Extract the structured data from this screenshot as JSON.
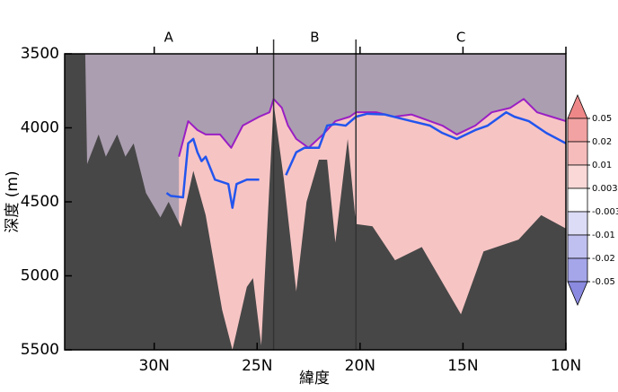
{
  "chart_data": {
    "type": "section",
    "xlabel": "緯度",
    "ylabel": "深度 (m)",
    "xlim": [
      34.35,
      10
    ],
    "ylim": [
      3500,
      5500
    ],
    "xticks": [
      {
        "value": 30,
        "label": "30N"
      },
      {
        "value": 25,
        "label": "25N"
      },
      {
        "value": 20,
        "label": "20N"
      },
      {
        "value": 15,
        "label": "15N"
      },
      {
        "value": 10,
        "label": "10N"
      }
    ],
    "yticks": [
      3500,
      4000,
      4500,
      5000,
      5500
    ],
    "sections": [
      {
        "label": "A",
        "x": 29.3
      },
      {
        "label": "B",
        "x": 22.2
      },
      {
        "label": "C",
        "x": 15.1
      }
    ],
    "dividers": [
      24.2,
      20.2
    ],
    "shading": {
      "below": "#f7c4c4",
      "above": "#9d98ad"
    },
    "bathymetry": {
      "color": "#474747",
      "x": [
        34.0,
        33.35,
        33.26,
        32.7,
        32.35,
        31.8,
        31.4,
        31.0,
        30.4,
        29.7,
        29.3,
        28.7,
        28.1,
        27.5,
        26.7,
        26.2,
        25.5,
        25.2,
        24.8,
        24.2,
        23.7,
        23.1,
        22.6,
        22.0,
        21.6,
        21.2,
        20.6,
        20.2,
        19.4,
        18.3,
        17.0,
        15.1,
        14.0,
        12.3,
        11.2,
        10.0
      ],
      "values": [
        3500,
        3500,
        4245,
        4045,
        4195,
        4045,
        4195,
        4105,
        4440,
        4605,
        4500,
        4670,
        4290,
        4590,
        5230,
        5500,
        5075,
        5015,
        5470,
        3835,
        4350,
        5105,
        4500,
        4215,
        4215,
        4775,
        4075,
        4650,
        4665,
        4895,
        4805,
        5260,
        4835,
        4755,
        4590,
        4680
      ]
    },
    "blue_line": {
      "color": "#2255ee",
      "x": [
        29.4,
        29.2,
        28.6,
        28.35,
        28.1,
        27.9,
        27.7,
        27.5,
        27.05,
        26.4,
        26.2,
        26.0,
        25.5,
        24.9,
        24.5,
        23.6,
        23.1,
        22.7,
        22.0,
        21.6,
        21.2,
        20.7,
        20.2,
        19.65,
        18.8,
        17.5,
        16.6,
        16.0,
        15.3,
        14.4,
        13.8,
        12.9,
        12.5,
        11.8,
        10.95,
        10.0
      ],
      "values": [
        4440,
        4460,
        4470,
        4105,
        4075,
        4165,
        4225,
        4195,
        4350,
        4380,
        4540,
        4380,
        4350,
        4350,
        null,
        4320,
        4165,
        4135,
        4135,
        3985,
        3975,
        3985,
        3925,
        3905,
        3910,
        3955,
        3985,
        4035,
        4075,
        4015,
        3985,
        3895,
        3925,
        3955,
        4035,
        4105
      ]
    },
    "purple_line": {
      "color": "#9a1fc4",
      "x": [
        28.8,
        28.35,
        27.9,
        27.5,
        26.8,
        26.26,
        25.7,
        24.9,
        24.4,
        24.2,
        23.8,
        23.5,
        23.1,
        22.5,
        21.8,
        21.2,
        20.5,
        20.2,
        19.2,
        18.35,
        17.5,
        16.6,
        16.0,
        15.3,
        14.4,
        13.6,
        12.7,
        12.05,
        11.4,
        10.7,
        10.0
      ],
      "values": [
        4195,
        3955,
        4015,
        4045,
        4045,
        4135,
        3985,
        3925,
        3895,
        3805,
        3865,
        3985,
        4075,
        4135,
        4045,
        3955,
        3925,
        3895,
        3895,
        3925,
        3910,
        3955,
        3985,
        4045,
        3985,
        3895,
        3865,
        3805,
        3895,
        3925,
        3955
      ]
    },
    "colorbar": {
      "levels": [
        0.05,
        0.02,
        0.01,
        0.003,
        -0.003,
        -0.01,
        -0.02,
        -0.05
      ],
      "colors": [
        "#ee8888",
        "#f2a2a2",
        "#f6bcbc",
        "#fad8d8",
        "#ffffff",
        "#dcdcf6",
        "#c0c0f0",
        "#a5a5ea",
        "#8a8ae0"
      ]
    }
  }
}
